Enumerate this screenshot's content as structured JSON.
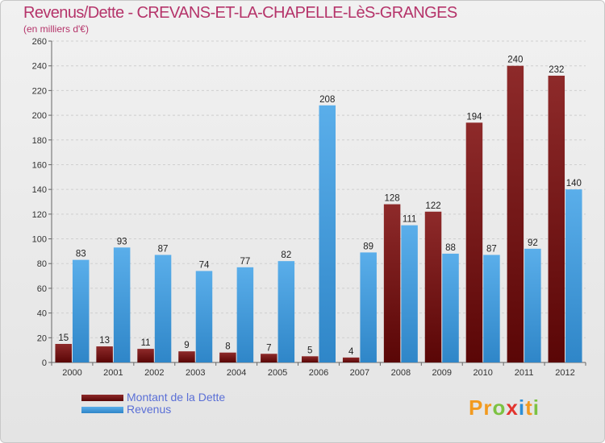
{
  "title": "Revenus/Dette - CREVANS-ET-LA-CHAPELLE-LèS-GRANGES",
  "subtitle": "(en milliers d'€)",
  "colors": {
    "dette": "#7a1616",
    "revenus": "#4a9fe0",
    "title": "#b5346a",
    "legend_text": "#5a6fd6"
  },
  "logo": {
    "text": "Proxiti",
    "colors": [
      "#f29a1f",
      "#f29a1f",
      "#7cc242",
      "#e2342e",
      "#2e8fd6",
      "#f29a1f",
      "#7cc242"
    ]
  },
  "chart_data": {
    "type": "bar",
    "categories": [
      "2000",
      "2001",
      "2002",
      "2003",
      "2004",
      "2005",
      "2006",
      "2007",
      "2008",
      "2009",
      "2010",
      "2011",
      "2012"
    ],
    "series": [
      {
        "name": "Montant de la Dette",
        "values": [
          15,
          13,
          11,
          9,
          8,
          7,
          5,
          4,
          128,
          122,
          194,
          240,
          232
        ]
      },
      {
        "name": "Revenus",
        "values": [
          83,
          93,
          87,
          74,
          77,
          82,
          208,
          89,
          111,
          88,
          87,
          92,
          140
        ]
      }
    ],
    "ylim": [
      0,
      260
    ],
    "yticks": [
      0,
      20,
      40,
      60,
      80,
      100,
      120,
      140,
      160,
      180,
      200,
      220,
      240,
      260
    ],
    "grid": true,
    "legend_position": "bottom-left"
  }
}
